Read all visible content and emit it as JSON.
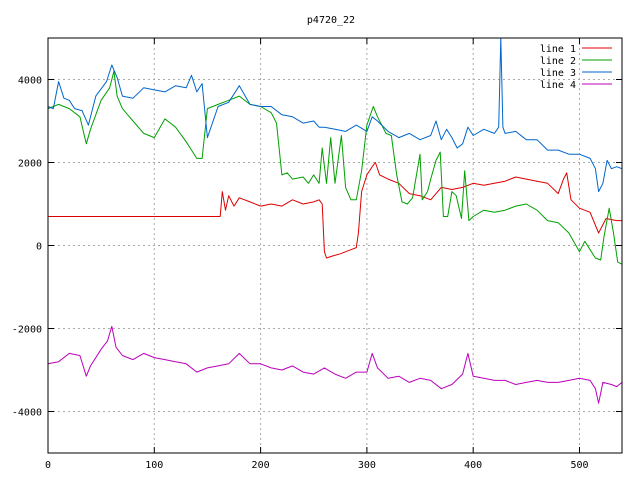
{
  "chart_data": {
    "type": "line",
    "title": "p4720_22",
    "xlabel": "",
    "ylabel": "",
    "xlim": [
      0,
      540
    ],
    "ylim": [
      -5000,
      5000
    ],
    "grid": true,
    "legend_placement": "top-right",
    "x_ticks": [
      0,
      100,
      200,
      300,
      400,
      500
    ],
    "y_ticks": [
      -4000,
      -2000,
      0,
      2000,
      4000
    ],
    "series": [
      {
        "name": "line 1",
        "color": "#dd0000",
        "points": [
          [
            0,
            700
          ],
          [
            160,
            700
          ],
          [
            162,
            700
          ],
          [
            164,
            1300
          ],
          [
            167,
            850
          ],
          [
            170,
            1200
          ],
          [
            175,
            950
          ],
          [
            180,
            1150
          ],
          [
            190,
            1050
          ],
          [
            200,
            950
          ],
          [
            210,
            1000
          ],
          [
            220,
            950
          ],
          [
            230,
            1100
          ],
          [
            240,
            1000
          ],
          [
            250,
            1050
          ],
          [
            255,
            1100
          ],
          [
            258,
            1000
          ],
          [
            260,
            -150
          ],
          [
            262,
            -300
          ],
          [
            268,
            -250
          ],
          [
            275,
            -200
          ],
          [
            285,
            -100
          ],
          [
            290,
            -50
          ],
          [
            292,
            300
          ],
          [
            295,
            1300
          ],
          [
            300,
            1700
          ],
          [
            305,
            1900
          ],
          [
            308,
            2000
          ],
          [
            312,
            1700
          ],
          [
            320,
            1600
          ],
          [
            330,
            1500
          ],
          [
            340,
            1250
          ],
          [
            350,
            1200
          ],
          [
            360,
            1100
          ],
          [
            370,
            1400
          ],
          [
            380,
            1350
          ],
          [
            390,
            1400
          ],
          [
            400,
            1500
          ],
          [
            410,
            1450
          ],
          [
            420,
            1500
          ],
          [
            430,
            1550
          ],
          [
            440,
            1650
          ],
          [
            450,
            1600
          ],
          [
            460,
            1550
          ],
          [
            470,
            1500
          ],
          [
            480,
            1250
          ],
          [
            485,
            1600
          ],
          [
            488,
            1750
          ],
          [
            492,
            1100
          ],
          [
            500,
            900
          ],
          [
            510,
            800
          ],
          [
            518,
            300
          ],
          [
            525,
            650
          ],
          [
            535,
            600
          ],
          [
            540,
            600
          ]
        ]
      },
      {
        "name": "line 2",
        "color": "#00a000",
        "points": [
          [
            0,
            3300
          ],
          [
            10,
            3400
          ],
          [
            20,
            3300
          ],
          [
            30,
            3100
          ],
          [
            36,
            2450
          ],
          [
            40,
            2800
          ],
          [
            50,
            3500
          ],
          [
            58,
            3800
          ],
          [
            62,
            4200
          ],
          [
            65,
            3600
          ],
          [
            70,
            3300
          ],
          [
            80,
            3000
          ],
          [
            90,
            2700
          ],
          [
            100,
            2600
          ],
          [
            110,
            3050
          ],
          [
            120,
            2850
          ],
          [
            130,
            2500
          ],
          [
            135,
            2300
          ],
          [
            140,
            2100
          ],
          [
            145,
            2100
          ],
          [
            150,
            3300
          ],
          [
            160,
            3400
          ],
          [
            170,
            3500
          ],
          [
            180,
            3600
          ],
          [
            190,
            3400
          ],
          [
            200,
            3350
          ],
          [
            210,
            3200
          ],
          [
            215,
            2950
          ],
          [
            220,
            1700
          ],
          [
            225,
            1750
          ],
          [
            230,
            1600
          ],
          [
            240,
            1650
          ],
          [
            245,
            1500
          ],
          [
            250,
            1700
          ],
          [
            255,
            1500
          ],
          [
            258,
            2350
          ],
          [
            262,
            1500
          ],
          [
            266,
            2600
          ],
          [
            270,
            1500
          ],
          [
            276,
            2650
          ],
          [
            280,
            1400
          ],
          [
            285,
            1100
          ],
          [
            290,
            1100
          ],
          [
            295,
            1800
          ],
          [
            300,
            2900
          ],
          [
            306,
            3350
          ],
          [
            310,
            3100
          ],
          [
            318,
            2700
          ],
          [
            323,
            2650
          ],
          [
            328,
            1700
          ],
          [
            333,
            1050
          ],
          [
            338,
            1000
          ],
          [
            343,
            1150
          ],
          [
            350,
            2200
          ],
          [
            352,
            1100
          ],
          [
            357,
            1300
          ],
          [
            360,
            1600
          ],
          [
            365,
            2050
          ],
          [
            369,
            2250
          ],
          [
            372,
            700
          ],
          [
            376,
            700
          ],
          [
            380,
            1300
          ],
          [
            384,
            1200
          ],
          [
            389,
            650
          ],
          [
            392,
            1800
          ],
          [
            396,
            600
          ],
          [
            400,
            700
          ],
          [
            410,
            850
          ],
          [
            420,
            800
          ],
          [
            430,
            850
          ],
          [
            440,
            950
          ],
          [
            450,
            1000
          ],
          [
            460,
            850
          ],
          [
            470,
            600
          ],
          [
            480,
            550
          ],
          [
            490,
            300
          ],
          [
            500,
            -150
          ],
          [
            505,
            100
          ],
          [
            510,
            -100
          ],
          [
            515,
            -300
          ],
          [
            520,
            -350
          ],
          [
            523,
            200
          ],
          [
            528,
            900
          ],
          [
            532,
            300
          ],
          [
            536,
            -400
          ],
          [
            540,
            -450
          ]
        ]
      },
      {
        "name": "line 3",
        "color": "#0066cc",
        "points": [
          [
            0,
            3350
          ],
          [
            5,
            3300
          ],
          [
            10,
            3950
          ],
          [
            15,
            3550
          ],
          [
            20,
            3500
          ],
          [
            25,
            3300
          ],
          [
            32,
            3250
          ],
          [
            38,
            2900
          ],
          [
            45,
            3600
          ],
          [
            55,
            3950
          ],
          [
            60,
            4350
          ],
          [
            65,
            4050
          ],
          [
            70,
            3600
          ],
          [
            80,
            3550
          ],
          [
            90,
            3800
          ],
          [
            100,
            3750
          ],
          [
            110,
            3700
          ],
          [
            120,
            3850
          ],
          [
            130,
            3800
          ],
          [
            135,
            4100
          ],
          [
            140,
            3700
          ],
          [
            145,
            3900
          ],
          [
            150,
            2600
          ],
          [
            160,
            3350
          ],
          [
            170,
            3450
          ],
          [
            180,
            3850
          ],
          [
            190,
            3400
          ],
          [
            200,
            3350
          ],
          [
            210,
            3350
          ],
          [
            220,
            3150
          ],
          [
            230,
            3100
          ],
          [
            240,
            2950
          ],
          [
            250,
            3000
          ],
          [
            255,
            2850
          ],
          [
            260,
            2850
          ],
          [
            270,
            2800
          ],
          [
            280,
            2750
          ],
          [
            290,
            2900
          ],
          [
            300,
            2750
          ],
          [
            305,
            3100
          ],
          [
            310,
            3000
          ],
          [
            320,
            2750
          ],
          [
            330,
            2600
          ],
          [
            340,
            2700
          ],
          [
            350,
            2550
          ],
          [
            360,
            2650
          ],
          [
            365,
            3000
          ],
          [
            370,
            2550
          ],
          [
            375,
            2800
          ],
          [
            380,
            2600
          ],
          [
            385,
            2350
          ],
          [
            390,
            2450
          ],
          [
            395,
            2850
          ],
          [
            400,
            2650
          ],
          [
            410,
            2800
          ],
          [
            420,
            2700
          ],
          [
            424,
            2850
          ],
          [
            426,
            5000
          ],
          [
            428,
            2850
          ],
          [
            430,
            2700
          ],
          [
            440,
            2750
          ],
          [
            450,
            2550
          ],
          [
            460,
            2550
          ],
          [
            470,
            2300
          ],
          [
            480,
            2300
          ],
          [
            490,
            2200
          ],
          [
            500,
            2200
          ],
          [
            510,
            2100
          ],
          [
            515,
            1850
          ],
          [
            518,
            1300
          ],
          [
            522,
            1500
          ],
          [
            526,
            2050
          ],
          [
            530,
            1850
          ],
          [
            535,
            1900
          ],
          [
            540,
            1850
          ]
        ]
      },
      {
        "name": "line 4",
        "color": "#bb00bb",
        "points": [
          [
            0,
            -2850
          ],
          [
            10,
            -2800
          ],
          [
            20,
            -2600
          ],
          [
            30,
            -2650
          ],
          [
            36,
            -3150
          ],
          [
            40,
            -2900
          ],
          [
            50,
            -2500
          ],
          [
            56,
            -2300
          ],
          [
            60,
            -1950
          ],
          [
            64,
            -2450
          ],
          [
            70,
            -2650
          ],
          [
            80,
            -2750
          ],
          [
            90,
            -2600
          ],
          [
            100,
            -2700
          ],
          [
            110,
            -2750
          ],
          [
            120,
            -2800
          ],
          [
            130,
            -2850
          ],
          [
            140,
            -3050
          ],
          [
            150,
            -2950
          ],
          [
            160,
            -2900
          ],
          [
            170,
            -2850
          ],
          [
            180,
            -2600
          ],
          [
            190,
            -2850
          ],
          [
            200,
            -2850
          ],
          [
            210,
            -2950
          ],
          [
            220,
            -3000
          ],
          [
            230,
            -2900
          ],
          [
            240,
            -3050
          ],
          [
            250,
            -3100
          ],
          [
            260,
            -2950
          ],
          [
            270,
            -3100
          ],
          [
            280,
            -3200
          ],
          [
            290,
            -3050
          ],
          [
            300,
            -3050
          ],
          [
            305,
            -2600
          ],
          [
            310,
            -2950
          ],
          [
            320,
            -3200
          ],
          [
            330,
            -3150
          ],
          [
            340,
            -3300
          ],
          [
            350,
            -3200
          ],
          [
            360,
            -3250
          ],
          [
            370,
            -3450
          ],
          [
            380,
            -3350
          ],
          [
            390,
            -3100
          ],
          [
            395,
            -2600
          ],
          [
            400,
            -3150
          ],
          [
            410,
            -3200
          ],
          [
            420,
            -3250
          ],
          [
            430,
            -3250
          ],
          [
            440,
            -3350
          ],
          [
            450,
            -3300
          ],
          [
            460,
            -3250
          ],
          [
            470,
            -3300
          ],
          [
            480,
            -3300
          ],
          [
            490,
            -3250
          ],
          [
            500,
            -3200
          ],
          [
            510,
            -3250
          ],
          [
            515,
            -3450
          ],
          [
            518,
            -3800
          ],
          [
            522,
            -3300
          ],
          [
            530,
            -3350
          ],
          [
            535,
            -3400
          ],
          [
            540,
            -3300
          ]
        ]
      }
    ]
  }
}
